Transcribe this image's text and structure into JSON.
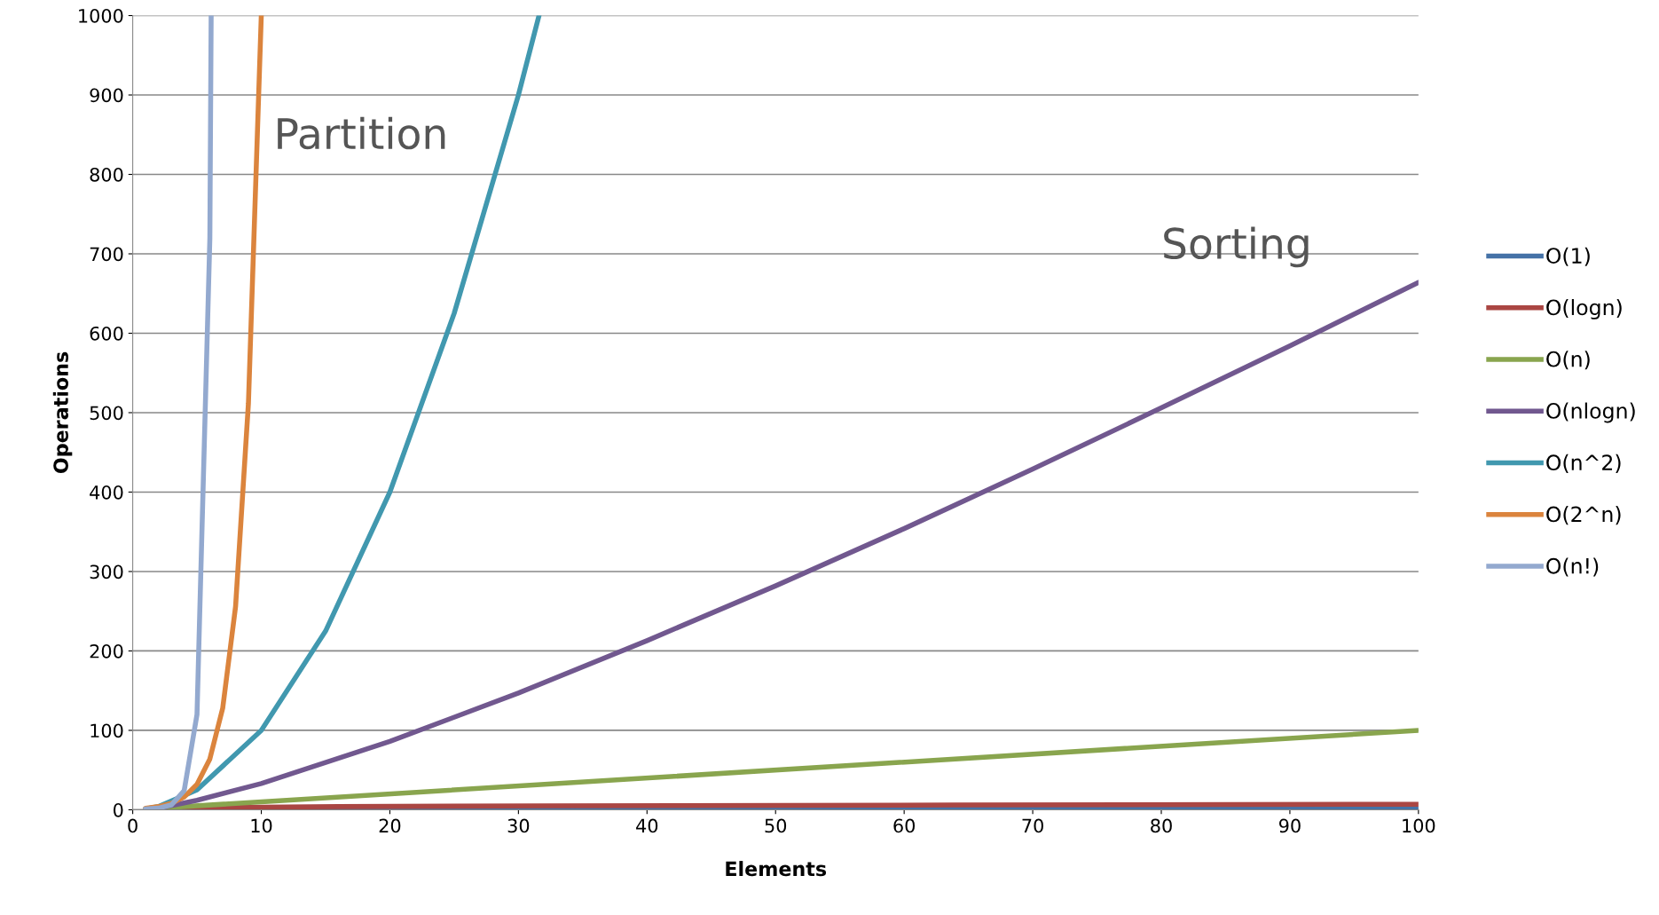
{
  "chart_data": {
    "type": "line",
    "xlabel": "Elements",
    "ylabel": "Operations",
    "xlim": [
      0,
      100
    ],
    "xticks": [
      0,
      10,
      20,
      30,
      40,
      50,
      60,
      70,
      80,
      90,
      100
    ],
    "ylim": [
      0,
      1000
    ],
    "yticks": [
      0,
      100,
      200,
      300,
      400,
      500,
      600,
      700,
      800,
      900,
      1000
    ],
    "grid": "y",
    "legend": "right",
    "marker": "none",
    "line_style": "solid",
    "annotations": [
      "Partition",
      "Sorting"
    ],
    "series": [
      {
        "name": "O(1)",
        "color": "#4572a7",
        "x": [
          1,
          100
        ],
        "values": [
          1,
          1
        ]
      },
      {
        "name": "O(logn)",
        "color": "#aa4643",
        "x": [
          1,
          2,
          4,
          8,
          16,
          32,
          64,
          100
        ],
        "values": [
          0,
          1,
          2,
          3,
          4,
          5,
          6,
          7
        ]
      },
      {
        "name": "O(n)",
        "color": "#89a54e",
        "x": [
          1,
          100
        ],
        "values": [
          1,
          100
        ]
      },
      {
        "name": "O(nlogn)",
        "color": "#71588f",
        "x": [
          1,
          2,
          5,
          10,
          20,
          30,
          40,
          50,
          60,
          70,
          80,
          90,
          100
        ],
        "values": [
          0,
          2,
          12,
          33,
          86,
          147,
          213,
          282,
          354,
          429,
          506,
          584,
          664
        ]
      },
      {
        "name": "O(n^2)",
        "color": "#4198af",
        "x": [
          1,
          2,
          5,
          10,
          15,
          20,
          25,
          30,
          31.6
        ],
        "values": [
          1,
          4,
          25,
          100,
          225,
          400,
          625,
          900,
          1000
        ]
      },
      {
        "name": "O(2^n)",
        "color": "#db843d",
        "x": [
          1,
          2,
          3,
          4,
          5,
          6,
          7,
          8,
          9,
          10
        ],
        "values": [
          2,
          4,
          8,
          16,
          32,
          64,
          128,
          256,
          512,
          1000
        ]
      },
      {
        "name": "O(n!)",
        "color": "#93a9cf",
        "x": [
          1,
          2,
          3,
          4,
          5,
          6,
          6.1
        ],
        "values": [
          1,
          2,
          6,
          24,
          120,
          720,
          1000
        ]
      }
    ]
  }
}
